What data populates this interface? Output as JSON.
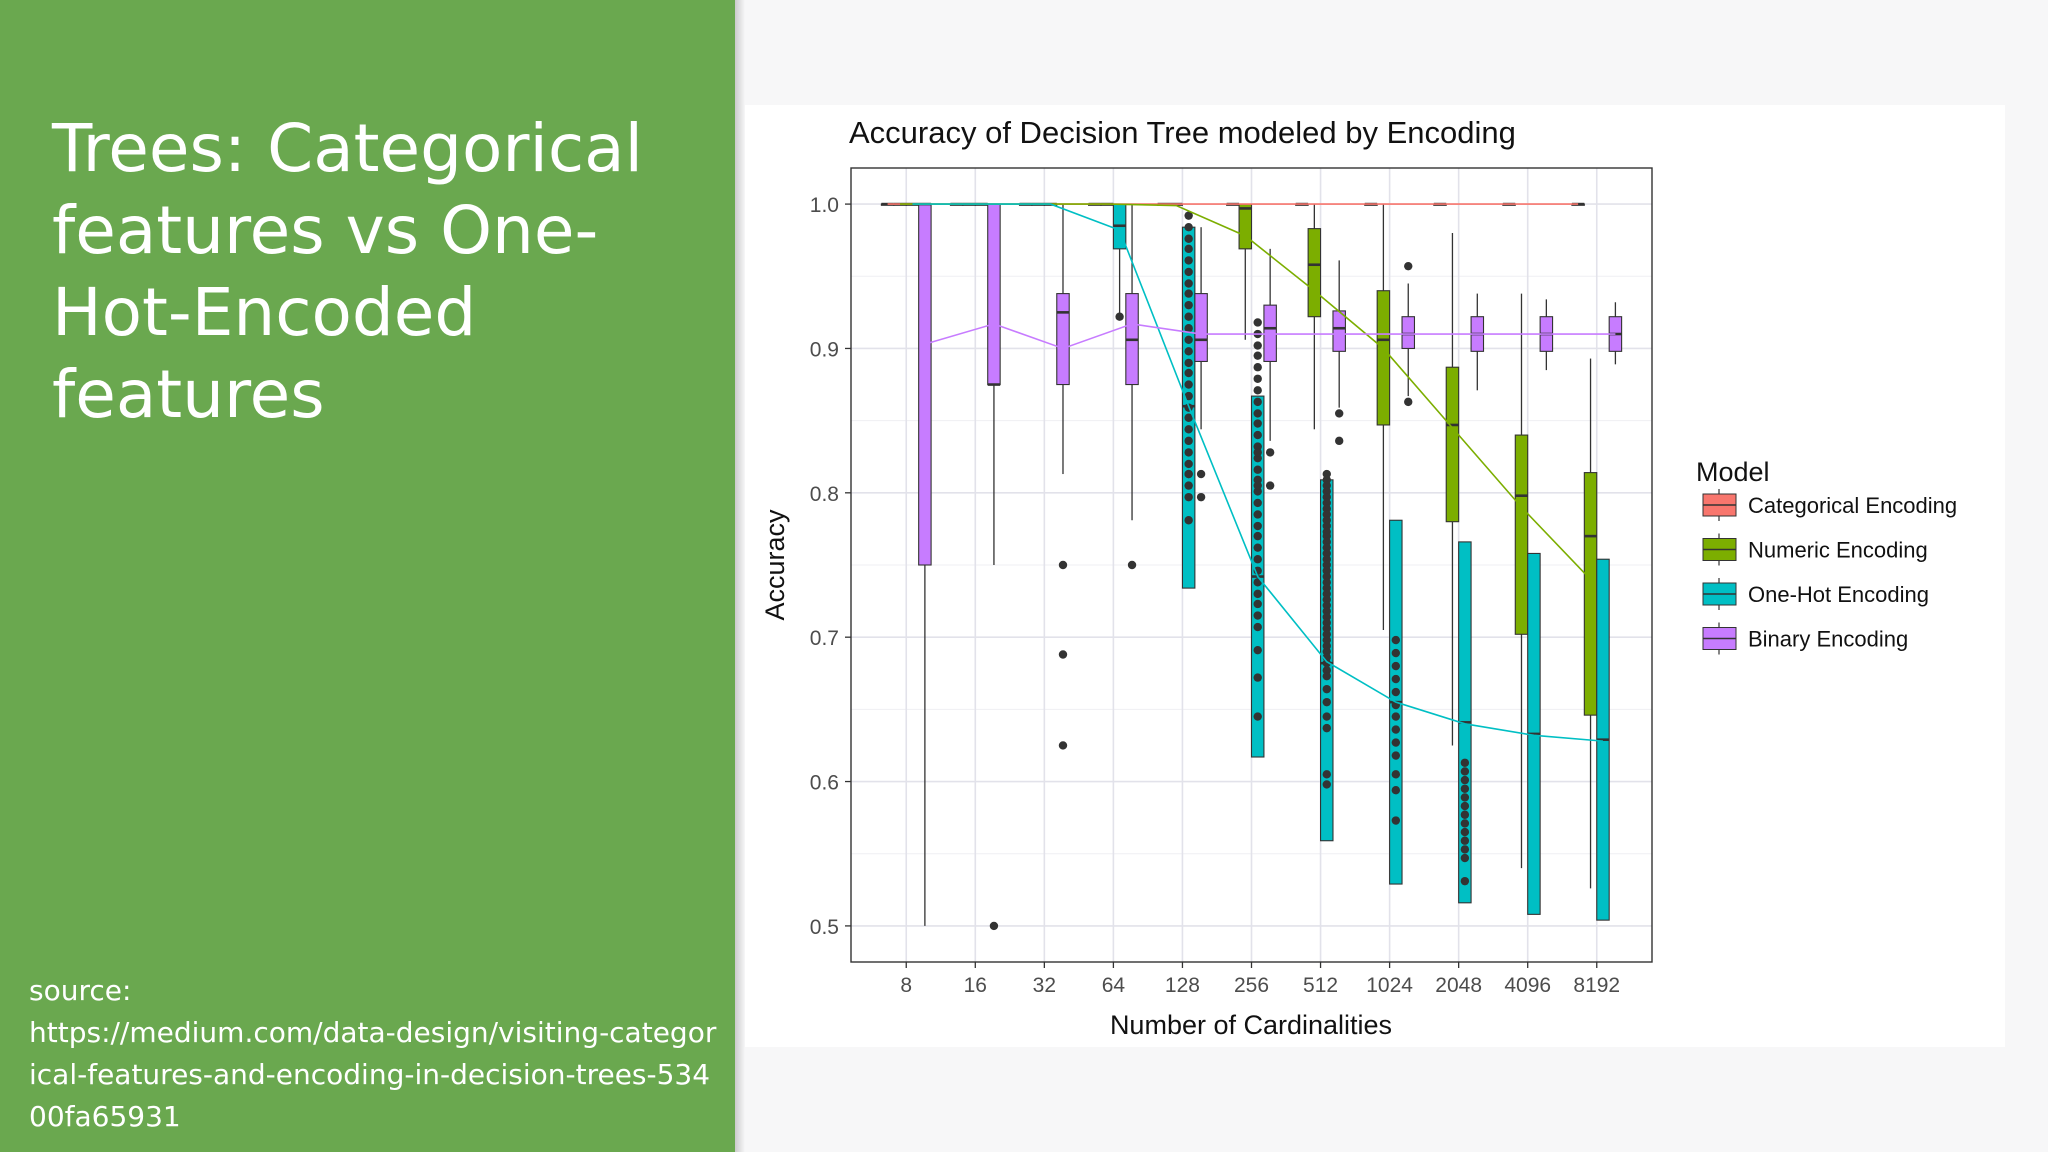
{
  "slide": {
    "title": "Trees: Categorical features vs One-Hot-Encoded features",
    "source_label": "source:",
    "source_url": "https://medium.com/data-design/visiting-categorical-features-and-encoding-in-decision-trees-53400fa65931",
    "panel_color": "#6aa84f"
  },
  "chart_data": {
    "type": "boxplot",
    "title": "Accuracy of Decision Tree modeled by Encoding",
    "xlabel": "Number of Cardinalities",
    "ylabel": "Accuracy",
    "categories": [
      "8",
      "16",
      "32",
      "64",
      "128",
      "256",
      "512",
      "1024",
      "2048",
      "4096",
      "8192"
    ],
    "ylim": [
      0.475,
      1.025
    ],
    "yticks": [
      0.5,
      0.6,
      0.7,
      0.8,
      0.9,
      1.0
    ],
    "ytick_labels": [
      "0.5",
      "0.6",
      "0.7",
      "0.8",
      "0.9",
      "1.0"
    ],
    "grid": true,
    "legend_title": "Model",
    "legend_position": "right",
    "series": [
      {
        "name": "Categorical Encoding",
        "color": "#f8766d",
        "offset": -1.5,
        "trend": [
          1.0,
          1.0,
          1.0,
          1.0,
          1.0,
          1.0,
          1.0,
          1.0,
          1.0,
          1.0,
          1.0
        ],
        "boxes": [
          {
            "cat": 0,
            "q1": 1.0,
            "med": 1.0,
            "q3": 1.0,
            "lo": 1.0,
            "hi": 1.0,
            "out": []
          },
          {
            "cat": 1,
            "q1": 1.0,
            "med": 1.0,
            "q3": 1.0,
            "lo": 1.0,
            "hi": 1.0,
            "out": []
          },
          {
            "cat": 2,
            "q1": 1.0,
            "med": 1.0,
            "q3": 1.0,
            "lo": 1.0,
            "hi": 1.0,
            "out": []
          },
          {
            "cat": 3,
            "q1": 1.0,
            "med": 1.0,
            "q3": 1.0,
            "lo": 1.0,
            "hi": 1.0,
            "out": []
          },
          {
            "cat": 4,
            "q1": 1.0,
            "med": 1.0,
            "q3": 1.0,
            "lo": 1.0,
            "hi": 1.0,
            "out": []
          },
          {
            "cat": 5,
            "q1": 1.0,
            "med": 1.0,
            "q3": 1.0,
            "lo": 1.0,
            "hi": 1.0,
            "out": []
          },
          {
            "cat": 6,
            "q1": 1.0,
            "med": 1.0,
            "q3": 1.0,
            "lo": 1.0,
            "hi": 1.0,
            "out": []
          },
          {
            "cat": 7,
            "q1": 1.0,
            "med": 1.0,
            "q3": 1.0,
            "lo": 1.0,
            "hi": 1.0,
            "out": []
          },
          {
            "cat": 8,
            "q1": 1.0,
            "med": 1.0,
            "q3": 1.0,
            "lo": 1.0,
            "hi": 1.0,
            "out": []
          },
          {
            "cat": 9,
            "q1": 1.0,
            "med": 1.0,
            "q3": 1.0,
            "lo": 1.0,
            "hi": 1.0,
            "out": []
          },
          {
            "cat": 10,
            "q1": 1.0,
            "med": 1.0,
            "q3": 1.0,
            "lo": 1.0,
            "hi": 1.0,
            "out": []
          }
        ]
      },
      {
        "name": "Numeric Encoding",
        "color": "#7cae00",
        "offset": -0.5,
        "trend": [
          1.0,
          1.0,
          1.0,
          1.0,
          0.999,
          0.978,
          0.94,
          0.9,
          0.845,
          0.79,
          0.74
        ],
        "boxes": [
          {
            "cat": 0,
            "q1": 1.0,
            "med": 1.0,
            "q3": 1.0,
            "lo": 1.0,
            "hi": 1.0,
            "out": []
          },
          {
            "cat": 1,
            "q1": 1.0,
            "med": 1.0,
            "q3": 1.0,
            "lo": 1.0,
            "hi": 1.0,
            "out": []
          },
          {
            "cat": 2,
            "q1": 1.0,
            "med": 1.0,
            "q3": 1.0,
            "lo": 1.0,
            "hi": 1.0,
            "out": []
          },
          {
            "cat": 3,
            "q1": 1.0,
            "med": 1.0,
            "q3": 1.0,
            "lo": 1.0,
            "hi": 1.0,
            "out": []
          },
          {
            "cat": 4,
            "q1": 1.0,
            "med": 1.0,
            "q3": 1.0,
            "lo": 1.0,
            "hi": 1.0,
            "out": []
          },
          {
            "cat": 5,
            "q1": 0.969,
            "med": 0.997,
            "q3": 1.0,
            "lo": 0.906,
            "hi": 1.0,
            "out": []
          },
          {
            "cat": 6,
            "q1": 0.922,
            "med": 0.958,
            "q3": 0.983,
            "lo": 0.844,
            "hi": 1.0,
            "out": []
          },
          {
            "cat": 7,
            "q1": 0.847,
            "med": 0.906,
            "q3": 0.94,
            "lo": 0.705,
            "hi": 1.0,
            "out": []
          },
          {
            "cat": 8,
            "q1": 0.78,
            "med": 0.847,
            "q3": 0.887,
            "lo": 0.625,
            "hi": 0.98,
            "out": []
          },
          {
            "cat": 9,
            "q1": 0.702,
            "med": 0.798,
            "q3": 0.84,
            "lo": 0.54,
            "hi": 0.938,
            "out": []
          },
          {
            "cat": 10,
            "q1": 0.646,
            "med": 0.77,
            "q3": 0.814,
            "lo": 0.526,
            "hi": 0.893,
            "out": []
          }
        ]
      },
      {
        "name": "One-Hot Encoding",
        "color": "#00bfc4",
        "offset": 0.5,
        "trend": [
          1.0,
          1.0,
          1.0,
          0.982,
          0.86,
          0.742,
          0.683,
          0.655,
          0.64,
          0.632,
          0.628
        ],
        "boxes": [
          {
            "cat": 0,
            "q1": 1.0,
            "med": 1.0,
            "q3": 1.0,
            "lo": 1.0,
            "hi": 1.0,
            "out": []
          },
          {
            "cat": 1,
            "q1": 1.0,
            "med": 1.0,
            "q3": 1.0,
            "lo": 1.0,
            "hi": 1.0,
            "out": []
          },
          {
            "cat": 2,
            "q1": 1.0,
            "med": 1.0,
            "q3": 1.0,
            "lo": 1.0,
            "hi": 1.0,
            "out": []
          },
          {
            "cat": 3,
            "q1": 0.969,
            "med": 0.985,
            "q3": 1.0,
            "lo": 0.92,
            "hi": 1.0,
            "out": [
              0.922
            ]
          },
          {
            "cat": 4,
            "q1": 0.734,
            "med": 0.86,
            "q3": 0.984,
            "lo": 0.734,
            "hi": 0.984,
            "out": [
              0.992,
              0.984,
              0.976,
              0.969,
              0.961,
              0.953,
              0.945,
              0.938,
              0.93,
              0.922,
              0.914,
              0.906,
              0.898,
              0.89,
              0.883,
              0.875,
              0.867,
              0.859,
              0.852,
              0.844,
              0.836,
              0.828,
              0.82,
              0.813,
              0.805,
              0.813,
              0.797,
              0.781
            ]
          },
          {
            "cat": 5,
            "q1": 0.617,
            "med": 0.742,
            "q3": 0.867,
            "lo": 0.617,
            "hi": 0.867,
            "out": [
              0.918,
              0.91,
              0.902,
              0.895,
              0.887,
              0.879,
              0.871,
              0.863,
              0.855,
              0.848,
              0.84,
              0.832,
              0.824,
              0.816,
              0.809,
              0.801,
              0.793,
              0.785,
              0.777,
              0.77,
              0.762,
              0.754,
              0.746,
              0.738,
              0.73,
              0.723,
              0.715,
              0.707,
              0.691,
              0.672,
              0.645,
              0.828,
              0.805
            ]
          },
          {
            "cat": 6,
            "q1": 0.559,
            "med": 0.682,
            "q3": 0.809,
            "lo": 0.559,
            "hi": 0.809,
            "out": [
              0.813,
              0.809,
              0.805,
              0.801,
              0.797,
              0.793,
              0.789,
              0.785,
              0.781,
              0.777,
              0.773,
              0.77,
              0.766,
              0.762,
              0.758,
              0.754,
              0.75,
              0.746,
              0.742,
              0.738,
              0.734,
              0.73,
              0.726,
              0.722,
              0.718,
              0.714,
              0.71,
              0.706,
              0.702,
              0.698,
              0.694,
              0.69,
              0.686,
              0.682,
              0.677,
              0.673,
              0.664,
              0.655,
              0.645,
              0.637,
              0.605,
              0.598
            ]
          },
          {
            "cat": 7,
            "q1": 0.529,
            "med": 0.655,
            "q3": 0.781,
            "lo": 0.529,
            "hi": 0.781,
            "out": [
              0.698,
              0.689,
              0.68,
              0.671,
              0.662,
              0.653,
              0.645,
              0.636,
              0.627,
              0.618,
              0.605,
              0.594,
              0.573
            ]
          },
          {
            "cat": 8,
            "q1": 0.516,
            "med": 0.641,
            "q3": 0.766,
            "lo": 0.516,
            "hi": 0.766,
            "out": [
              0.613,
              0.607,
              0.601,
              0.595,
              0.589,
              0.583,
              0.577,
              0.571,
              0.565,
              0.559,
              0.553,
              0.547,
              0.531
            ]
          },
          {
            "cat": 9,
            "q1": 0.508,
            "med": 0.633,
            "q3": 0.758,
            "lo": 0.508,
            "hi": 0.758,
            "out": []
          },
          {
            "cat": 10,
            "q1": 0.504,
            "med": 0.629,
            "q3": 0.754,
            "lo": 0.504,
            "hi": 0.754,
            "out": []
          }
        ]
      },
      {
        "name": "Binary Encoding",
        "color": "#c77cff",
        "offset": 1.5,
        "trend": [
          0.903,
          0.917,
          0.9,
          0.917,
          0.91,
          0.91,
          0.91,
          0.91,
          0.91,
          0.91,
          0.91
        ],
        "boxes": [
          {
            "cat": 0,
            "q1": 0.75,
            "med": 1.0,
            "q3": 1.0,
            "lo": 0.5,
            "hi": 1.0,
            "out": []
          },
          {
            "cat": 1,
            "q1": 0.875,
            "med": 0.875,
            "q3": 1.0,
            "lo": 0.75,
            "hi": 1.0,
            "out": [
              0.5
            ]
          },
          {
            "cat": 2,
            "q1": 0.875,
            "med": 0.925,
            "q3": 0.938,
            "lo": 0.813,
            "hi": 1.0,
            "out": [
              0.75,
              0.688,
              0.625
            ]
          },
          {
            "cat": 3,
            "q1": 0.875,
            "med": 0.906,
            "q3": 0.938,
            "lo": 0.781,
            "hi": 1.0,
            "out": [
              0.75
            ]
          },
          {
            "cat": 4,
            "q1": 0.891,
            "med": 0.906,
            "q3": 0.938,
            "lo": 0.844,
            "hi": 0.984,
            "out": [
              0.813,
              0.797
            ]
          },
          {
            "cat": 5,
            "q1": 0.891,
            "med": 0.914,
            "q3": 0.93,
            "lo": 0.836,
            "hi": 0.969,
            "out": [
              0.828,
              0.805
            ]
          },
          {
            "cat": 6,
            "q1": 0.898,
            "med": 0.914,
            "q3": 0.926,
            "lo": 0.859,
            "hi": 0.961,
            "out": [
              0.855,
              0.836
            ]
          },
          {
            "cat": 7,
            "q1": 0.9,
            "med": 0.91,
            "q3": 0.922,
            "lo": 0.867,
            "hi": 0.945,
            "out": [
              0.957,
              0.863
            ]
          },
          {
            "cat": 8,
            "q1": 0.898,
            "med": 0.91,
            "q3": 0.922,
            "lo": 0.871,
            "hi": 0.938,
            "out": []
          },
          {
            "cat": 9,
            "q1": 0.898,
            "med": 0.91,
            "q3": 0.922,
            "lo": 0.885,
            "hi": 0.934,
            "out": []
          },
          {
            "cat": 10,
            "q1": 0.898,
            "med": 0.91,
            "q3": 0.922,
            "lo": 0.889,
            "hi": 0.932,
            "out": []
          }
        ]
      }
    ]
  }
}
